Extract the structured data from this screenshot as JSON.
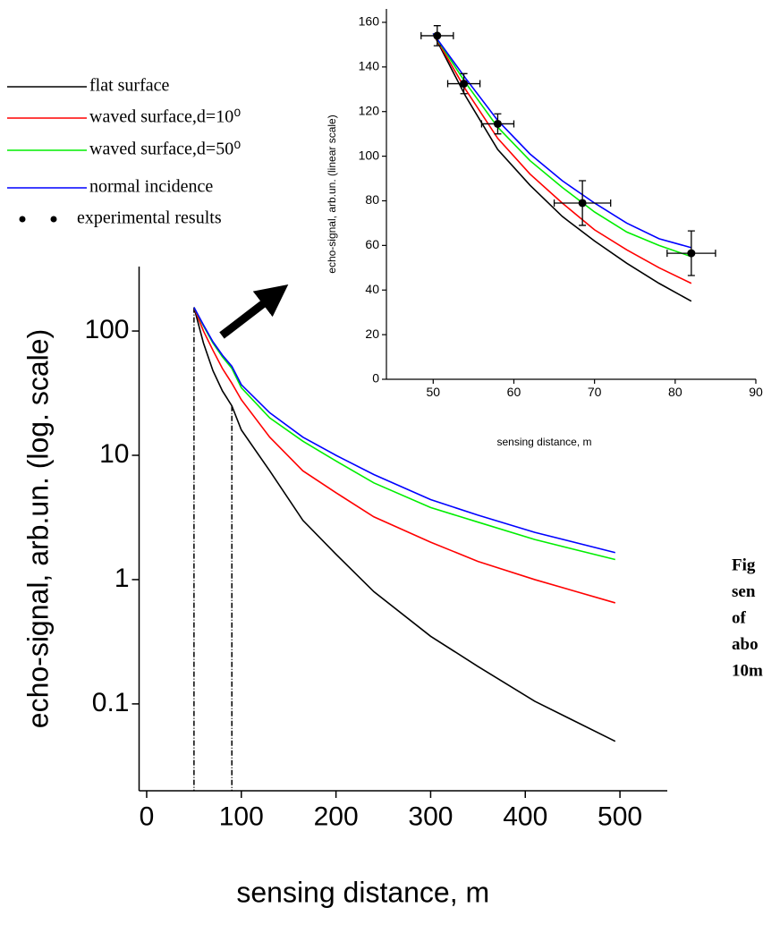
{
  "chart_data": [
    {
      "type": "line",
      "log_y": true,
      "x_label": "sensing distance, m",
      "y_label": "echo-signal, arb.un. (log. scale)",
      "xlim": [
        -8,
        550
      ],
      "xticks": [
        0,
        100,
        200,
        300,
        400,
        500
      ],
      "ylim": [
        0.02,
        330
      ],
      "yticks": [
        0.1,
        1,
        10,
        100
      ],
      "x": [
        50,
        60,
        70,
        80,
        90,
        100,
        130,
        165,
        200,
        240,
        300,
        350,
        410,
        495
      ],
      "series": [
        {
          "name": "flat surface",
          "color": "#000000",
          "values": [
            155,
            80,
            48,
            33,
            25,
            16,
            7.5,
            3,
            1.6,
            0.8,
            0.35,
            0.2,
            0.105,
            0.05
          ]
        },
        {
          "name": "waved surface,d=10⁰",
          "color": "#ff0000",
          "values": [
            155,
            100,
            70,
            50,
            38,
            28,
            14,
            7.5,
            5,
            3.2,
            2,
            1.4,
            1.0,
            0.65
          ]
        },
        {
          "name": "waved surface,d=50⁰",
          "color": "#00ee00",
          "values": [
            155,
            110,
            80,
            62,
            50,
            35,
            20,
            13,
            9,
            6,
            3.8,
            2.9,
            2.1,
            1.45
          ]
        },
        {
          "name": "normal incidence",
          "color": "#0000ff",
          "values": [
            155,
            112,
            82,
            64,
            52,
            37,
            22,
            14,
            10,
            7,
            4.4,
            3.3,
            2.4,
            1.65
          ]
        }
      ],
      "vlines": [
        50,
        90
      ]
    },
    {
      "type": "line",
      "x_label": "sensing distance, m",
      "y_label": "echo-signal, arb.un. (linear scale)",
      "xlim": [
        44.2,
        90
      ],
      "xticks": [
        50,
        60,
        70,
        80,
        90
      ],
      "ylim": [
        0,
        166
      ],
      "yticks": [
        0,
        20,
        40,
        60,
        80,
        100,
        120,
        140,
        160
      ],
      "x": [
        50,
        54,
        58,
        62,
        66,
        70,
        74,
        78,
        82
      ],
      "series": [
        {
          "color": "#000000",
          "values": [
            155,
            127,
            103,
            87,
            73,
            62,
            52,
            43,
            35
          ]
        },
        {
          "color": "#ff0000",
          "values": [
            155,
            130,
            108,
            92,
            79,
            67,
            58,
            50,
            43
          ]
        },
        {
          "color": "#00ee00",
          "values": [
            155,
            133,
            113,
            98,
            86,
            75,
            66,
            60,
            55
          ]
        },
        {
          "color": "#0000ff",
          "values": [
            155,
            135,
            116,
            101,
            89,
            79,
            70,
            63,
            59
          ]
        }
      ],
      "points": {
        "name": "experimental results",
        "color": "#000000",
        "x": [
          50.5,
          53.8,
          58,
          68.5,
          82
        ],
        "values": [
          154,
          132.5,
          114.5,
          79,
          56.5
        ],
        "xerr": [
          2,
          2,
          2,
          3.5,
          3
        ],
        "yerr": [
          4.5,
          4.5,
          4.5,
          10,
          10
        ]
      }
    }
  ],
  "caption_lines": [
    "Fig",
    "sen",
    "of",
    "abo",
    "10m"
  ]
}
